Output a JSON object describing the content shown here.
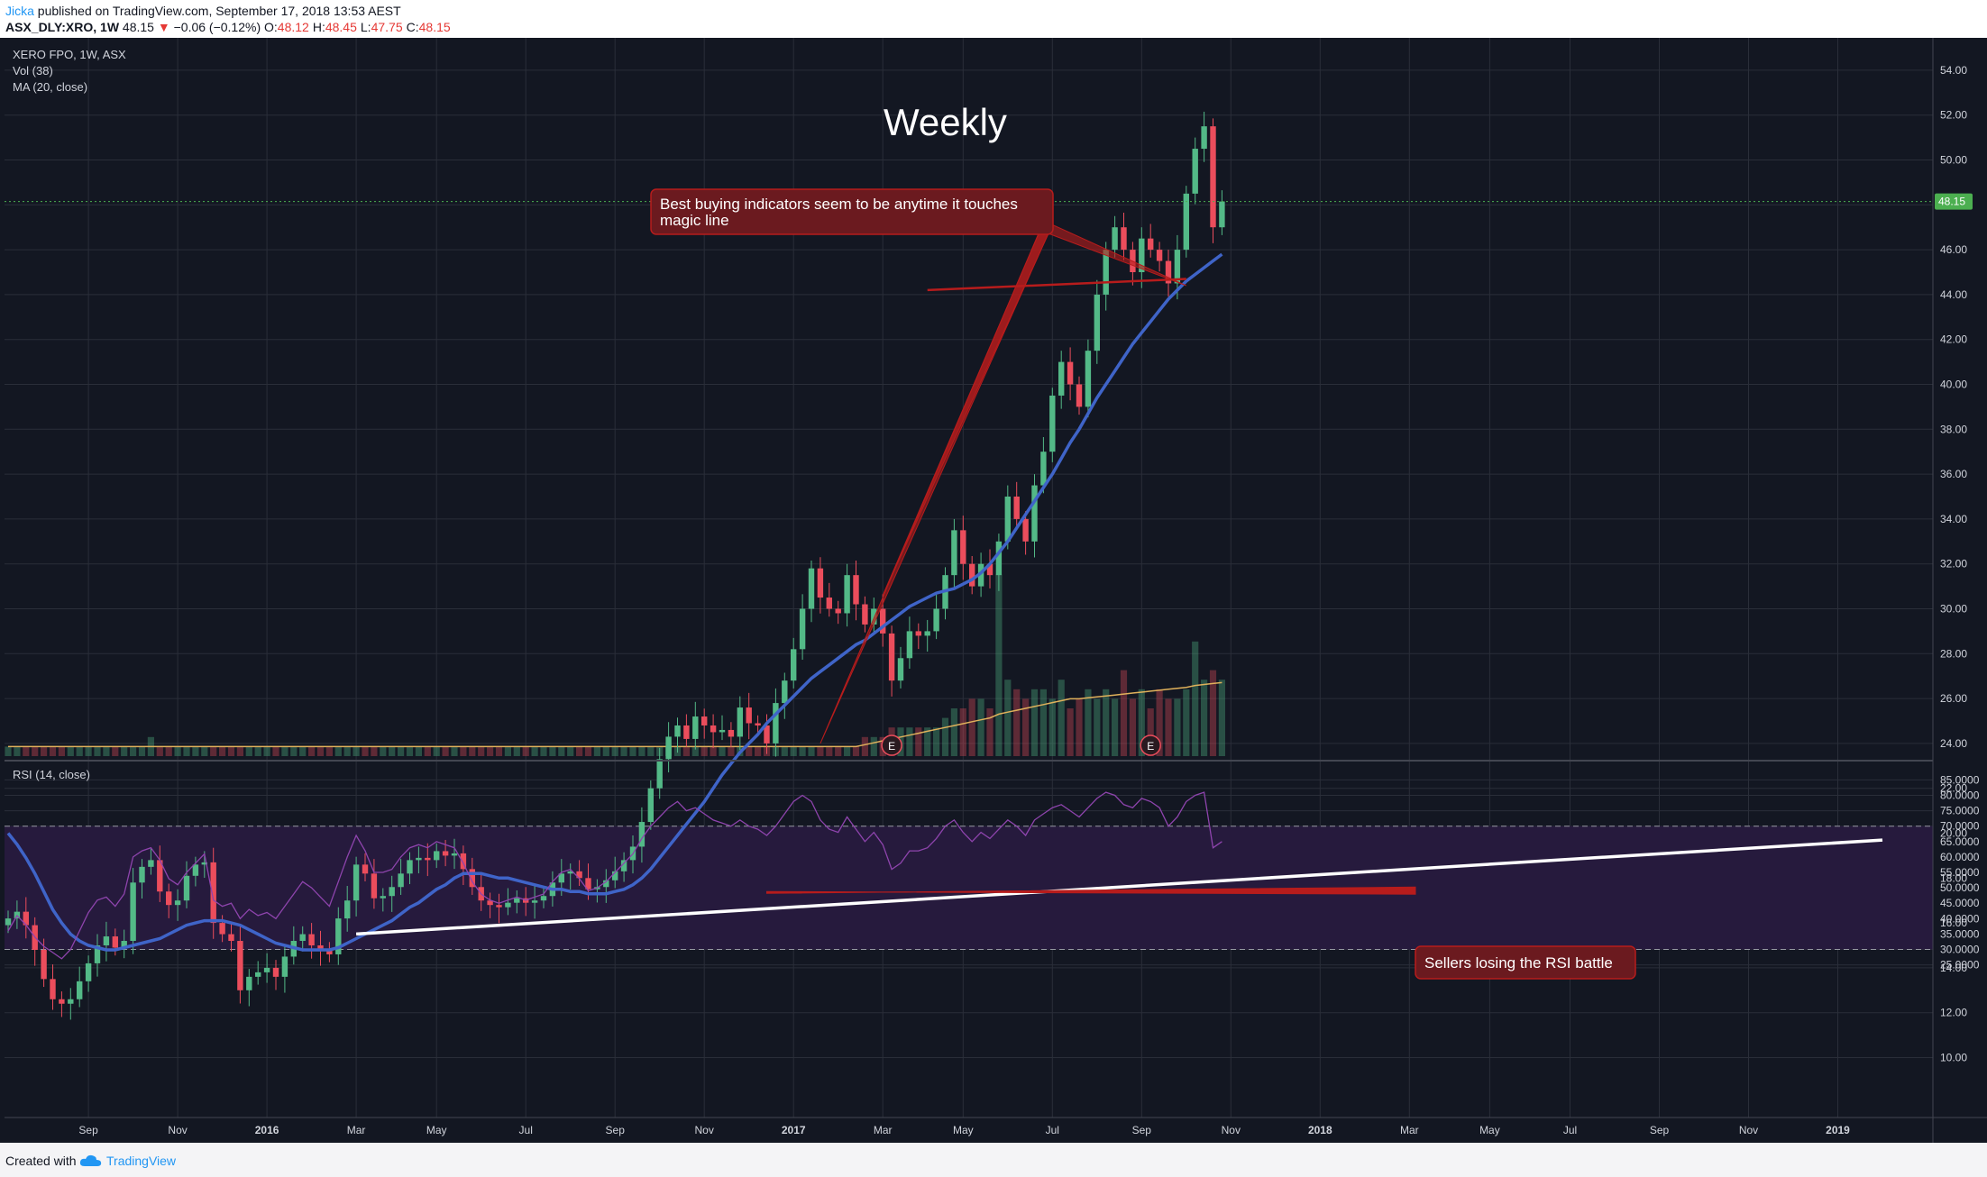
{
  "header": {
    "author": "Jicka",
    "published": " published on TradingView.com, September 17, 2018 13:53 AEST",
    "symbol": "ASX_DLY:XRO, 1W",
    "last": " 48.15 ",
    "down_arrow": "▼",
    "change": " −0.06 (−0.12%)",
    "o_label": " O:",
    "o": "48.12",
    "h_label": "H:",
    "h": "48.45",
    "l_label": "L:",
    "l": "47.75",
    "c_label": "C:",
    "c": "48.15"
  },
  "legend": {
    "symbol": "XERO FPO, 1W, ASX",
    "vol": "Vol (38)",
    "ma": "MA (20, close)",
    "rsi": "RSI (14, close)"
  },
  "annotations": {
    "title": "Weekly",
    "callout1_line1": "Best buying indicators seem to be anytime it touches",
    "callout1_line2": "magic line",
    "callout2": "Sellers losing the RSI battle",
    "earnings_marker": "E",
    "price_tag": "48.15"
  },
  "footer": {
    "created_with": "Created with",
    "brand": "TradingView"
  },
  "colors": {
    "background": "#131722",
    "rsi_band": "#261a3d",
    "grid": "#2a2e39",
    "up": "#53b987",
    "down": "#eb4d5c",
    "ma_line": "#3f64c8",
    "rsi_line": "#8e44ad",
    "trendline": "#ffffff",
    "callout": "#6b1a1f",
    "price_tag": "#4caf50"
  },
  "chart_data": [
    {
      "type": "candlestick",
      "title": "XERO FPO, 1W, ASX",
      "y_ticks": [
        "54.00",
        "52.00",
        "50.00",
        "48.00",
        "46.00",
        "44.00",
        "42.00",
        "40.00",
        "38.00",
        "36.00",
        "34.00",
        "32.00",
        "30.00",
        "28.00",
        "26.00",
        "24.00",
        "22.00",
        "20.00",
        "18.00",
        "16.00",
        "14.00",
        "12.00",
        "10.00"
      ],
      "ylim": [
        9.6,
        55
      ],
      "x_ticks": [
        "Sep",
        "Nov",
        "2016",
        "Mar",
        "May",
        "Jul",
        "Sep",
        "Nov",
        "2017",
        "Mar",
        "May",
        "Jul",
        "Sep",
        "Nov",
        "2018",
        "Mar",
        "May",
        "Jul",
        "Sep",
        "Nov",
        "2019"
      ],
      "x_tick_index": [
        9,
        19,
        29,
        39,
        48,
        58,
        68,
        78,
        88,
        98,
        107,
        117,
        127,
        137,
        147,
        157,
        166,
        175,
        185,
        195,
        205
      ],
      "last_price": 48.15,
      "closes": [
        16.2,
        16.5,
        15.9,
        14.8,
        13.5,
        12.6,
        12.4,
        12.6,
        13.4,
        14.2,
        15.0,
        15.4,
        14.9,
        15.2,
        17.8,
        18.5,
        18.8,
        17.4,
        16.8,
        17.0,
        18.1,
        18.6,
        18.7,
        16.0,
        15.5,
        15.2,
        13.0,
        13.6,
        13.8,
        14.0,
        13.6,
        14.5,
        15.2,
        15.5,
        15.0,
        14.8,
        14.6,
        16.2,
        17.0,
        18.6,
        18.2,
        17.1,
        17.2,
        17.6,
        18.2,
        18.8,
        18.9,
        18.8,
        19.2,
        19.0,
        19.1,
        18.4,
        17.6,
        17.0,
        16.8,
        16.7,
        16.9,
        17.1,
        16.9,
        17.0,
        17.2,
        17.8,
        18.2,
        18.3,
        18.0,
        17.5,
        17.6,
        17.9,
        18.3,
        18.8,
        19.4,
        20.5,
        22.0,
        23.3,
        24.3,
        24.8,
        24.2,
        25.2,
        24.8,
        24.5,
        24.6,
        24.3,
        25.6,
        24.9,
        24.8,
        24.0,
        25.8,
        26.8,
        28.2,
        30.0,
        31.8,
        30.5,
        30.0,
        29.8,
        31.5,
        30.2,
        29.3,
        30.0,
        28.9,
        26.8,
        27.8,
        29.0,
        28.8,
        29.0,
        30.0,
        31.5,
        33.5,
        32.0,
        31.0,
        32.0,
        31.5,
        33.0,
        35.0,
        34.0,
        33.0,
        35.5,
        37.0,
        39.5,
        41.0,
        40.0,
        39.0,
        41.5,
        44.0,
        46.0,
        47.0,
        46.0,
        45.0,
        46.5,
        46.0,
        45.5,
        44.5,
        46.0,
        48.5,
        50.5,
        51.5,
        47.0,
        48.15
      ],
      "ma20": [
        20.0,
        19.5,
        18.9,
        18.2,
        17.4,
        16.6,
        16.0,
        15.5,
        15.2,
        15.0,
        14.9,
        14.8,
        14.8,
        14.9,
        15.0,
        15.1,
        15.2,
        15.3,
        15.5,
        15.7,
        15.9,
        16.0,
        16.1,
        16.1,
        16.1,
        16.0,
        15.9,
        15.7,
        15.5,
        15.3,
        15.1,
        15.0,
        14.9,
        14.8,
        14.8,
        14.8,
        14.8,
        14.9,
        15.1,
        15.3,
        15.5,
        15.7,
        15.9,
        16.1,
        16.4,
        16.7,
        16.9,
        17.2,
        17.5,
        17.7,
        18.0,
        18.2,
        18.2,
        18.2,
        18.1,
        18.0,
        18.0,
        17.9,
        17.8,
        17.7,
        17.6,
        17.5,
        17.5,
        17.4,
        17.4,
        17.3,
        17.3,
        17.3,
        17.4,
        17.5,
        17.7,
        18.0,
        18.4,
        18.9,
        19.4,
        19.9,
        20.4,
        20.9,
        21.4,
        22.0,
        22.6,
        23.1,
        23.6,
        24.0,
        24.4,
        24.9,
        25.3,
        25.7,
        26.1,
        26.5,
        26.9,
        27.2,
        27.5,
        27.8,
        28.1,
        28.4,
        28.6,
        28.9,
        29.2,
        29.5,
        29.8,
        30.1,
        30.3,
        30.5,
        30.7,
        30.8,
        30.9,
        31.1,
        31.3,
        31.6,
        32.0,
        32.5,
        33.0,
        33.6,
        34.2,
        34.8,
        35.4,
        36.0,
        36.7,
        37.4,
        38.0,
        38.7,
        39.4,
        40.0,
        40.6,
        41.2,
        41.8,
        42.3,
        42.8,
        43.3,
        43.8,
        44.2,
        44.6,
        44.9,
        45.2,
        45.5,
        45.8
      ]
    },
    {
      "type": "line",
      "title": "RSI (14, close)",
      "y_ticks": [
        "85.0000",
        "80.0000",
        "75.0000",
        "70.0000",
        "65.0000",
        "60.0000",
        "55.0000",
        "50.0000",
        "45.0000",
        "40.0000",
        "35.0000",
        "30.0000",
        "25.0000"
      ],
      "ylim": [
        24,
        86
      ],
      "bands": [
        30,
        70
      ],
      "values": [
        36,
        41,
        38,
        34,
        31,
        29,
        27,
        30,
        36,
        42,
        46,
        47,
        44,
        48,
        60,
        62,
        63,
        59,
        53,
        51,
        55,
        58,
        61,
        46,
        44,
        45,
        40,
        43,
        41,
        42,
        40,
        44,
        48,
        52,
        50,
        47,
        44,
        52,
        60,
        67,
        62,
        55,
        55,
        56,
        60,
        63,
        64,
        63,
        65,
        64,
        63,
        58,
        52,
        48,
        46,
        45,
        46,
        47,
        46,
        47,
        48,
        52,
        55,
        56,
        53,
        49,
        50,
        52,
        55,
        58,
        61,
        66,
        70,
        73,
        76,
        78,
        75,
        76,
        74,
        72,
        71,
        70,
        72,
        70,
        69,
        67,
        70,
        74,
        78,
        80,
        78,
        72,
        69,
        68,
        73,
        69,
        65,
        68,
        64,
        56,
        58,
        62,
        62,
        63,
        66,
        70,
        72,
        68,
        65,
        68,
        66,
        69,
        72,
        70,
        67,
        72,
        74,
        76,
        77,
        75,
        73,
        76,
        79,
        81,
        80,
        77,
        76,
        79,
        78,
        76,
        70,
        73,
        78,
        80,
        81,
        63,
        65
      ],
      "trendline": {
        "from": [
          39,
          35
        ],
        "to": [
          210,
          65.5
        ]
      },
      "callout_level": 48.5
    },
    {
      "type": "bar",
      "title": "Vol (38)",
      "values": [
        1,
        1,
        1,
        1,
        1,
        1,
        1,
        1,
        1,
        1,
        1,
        1,
        1,
        1,
        1,
        1,
        2,
        1,
        1,
        1,
        1,
        1,
        1,
        1,
        1,
        1,
        1,
        1,
        1,
        1,
        1,
        1,
        1,
        1,
        1,
        1,
        1,
        1,
        1,
        1,
        1,
        1,
        1,
        1,
        1,
        1,
        1,
        1,
        1,
        1,
        1,
        1,
        1,
        1,
        1,
        1,
        1,
        1,
        1,
        1,
        1,
        1,
        1,
        1,
        1,
        1,
        1,
        1,
        1,
        1,
        1,
        1,
        1,
        1,
        1,
        1,
        1,
        1,
        1,
        1,
        1,
        1,
        1,
        1,
        1,
        1,
        1,
        1,
        1,
        1,
        1,
        1,
        1,
        1,
        1,
        1,
        2,
        2,
        2,
        3,
        3,
        3,
        3,
        3,
        3,
        4,
        5,
        5,
        6,
        6,
        5,
        19,
        8,
        7,
        6,
        7,
        7,
        6,
        8,
        5,
        6,
        7,
        6,
        7,
        6,
        9,
        6,
        7,
        5,
        7,
        6,
        6,
        7,
        12,
        8,
        9,
        8
      ],
      "ma": [
        1,
        1,
        1,
        1,
        1,
        1,
        1,
        1,
        1,
        1,
        1,
        1,
        1,
        1,
        1,
        1,
        1,
        1,
        1,
        1,
        1,
        1,
        1,
        1,
        1,
        1,
        1,
        1,
        1,
        1,
        1,
        1,
        1,
        1,
        1,
        1,
        1,
        1,
        1,
        1,
        1,
        1,
        1,
        1,
        1,
        1,
        1,
        1,
        1,
        1,
        1,
        1,
        1,
        1,
        1,
        1,
        1,
        1,
        1,
        1,
        1,
        1,
        1,
        1,
        1,
        1,
        1,
        1,
        1,
        1,
        1,
        1,
        1,
        1,
        1,
        1,
        1,
        1,
        1,
        1,
        1,
        1,
        1,
        1,
        1,
        1,
        1,
        1,
        1,
        1,
        1,
        1,
        1,
        1,
        1,
        1,
        1.2,
        1.4,
        1.6,
        1.8,
        2,
        2.2,
        2.4,
        2.6,
        2.8,
        3,
        3.2,
        3.4,
        3.6,
        3.8,
        4,
        4.4,
        4.6,
        4.8,
        5,
        5.2,
        5.4,
        5.6,
        5.8,
        6,
        6,
        6.1,
        6.2,
        6.3,
        6.4,
        6.5,
        6.6,
        6.7,
        6.8,
        6.9,
        7,
        7.1,
        7.2,
        7.4,
        7.5,
        7.6,
        7.7
      ],
      "earnings_index": [
        99,
        128
      ]
    }
  ]
}
